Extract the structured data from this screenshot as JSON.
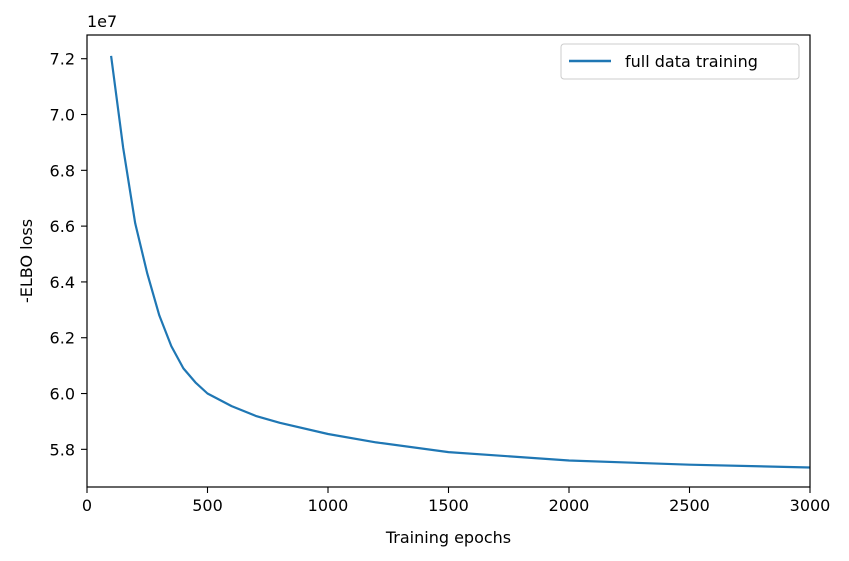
{
  "chart_data": {
    "type": "line",
    "title": "",
    "xlabel": "Training epochs",
    "ylabel": "-ELBO loss",
    "y_offset_label": "1e7",
    "xlim": [
      0,
      3000
    ],
    "ylim": [
      5.665,
      7.285
    ],
    "x_ticks": [
      0,
      500,
      1000,
      1500,
      2000,
      2500,
      3000
    ],
    "x_tick_labels": [
      "0",
      "500",
      "1000",
      "1500",
      "2000",
      "2500",
      "3000"
    ],
    "y_ticks": [
      5.8,
      6.0,
      6.2,
      6.4,
      6.6,
      6.8,
      7.0,
      7.2
    ],
    "y_tick_labels": [
      "5.8",
      "6.0",
      "6.2",
      "6.4",
      "6.6",
      "6.8",
      "7.0",
      "7.2"
    ],
    "grid": false,
    "legend_position": "top-right",
    "series": [
      {
        "name": "full data training",
        "color": "#1f77b4",
        "x": [
          100,
          150,
          200,
          250,
          300,
          350,
          400,
          450,
          500,
          600,
          700,
          800,
          1000,
          1200,
          1500,
          2000,
          2500,
          3000
        ],
        "y": [
          7.21,
          6.88,
          6.61,
          6.43,
          6.28,
          6.17,
          6.09,
          6.04,
          6.0,
          5.955,
          5.92,
          5.895,
          5.855,
          5.825,
          5.79,
          5.76,
          5.745,
          5.735
        ]
      }
    ]
  }
}
